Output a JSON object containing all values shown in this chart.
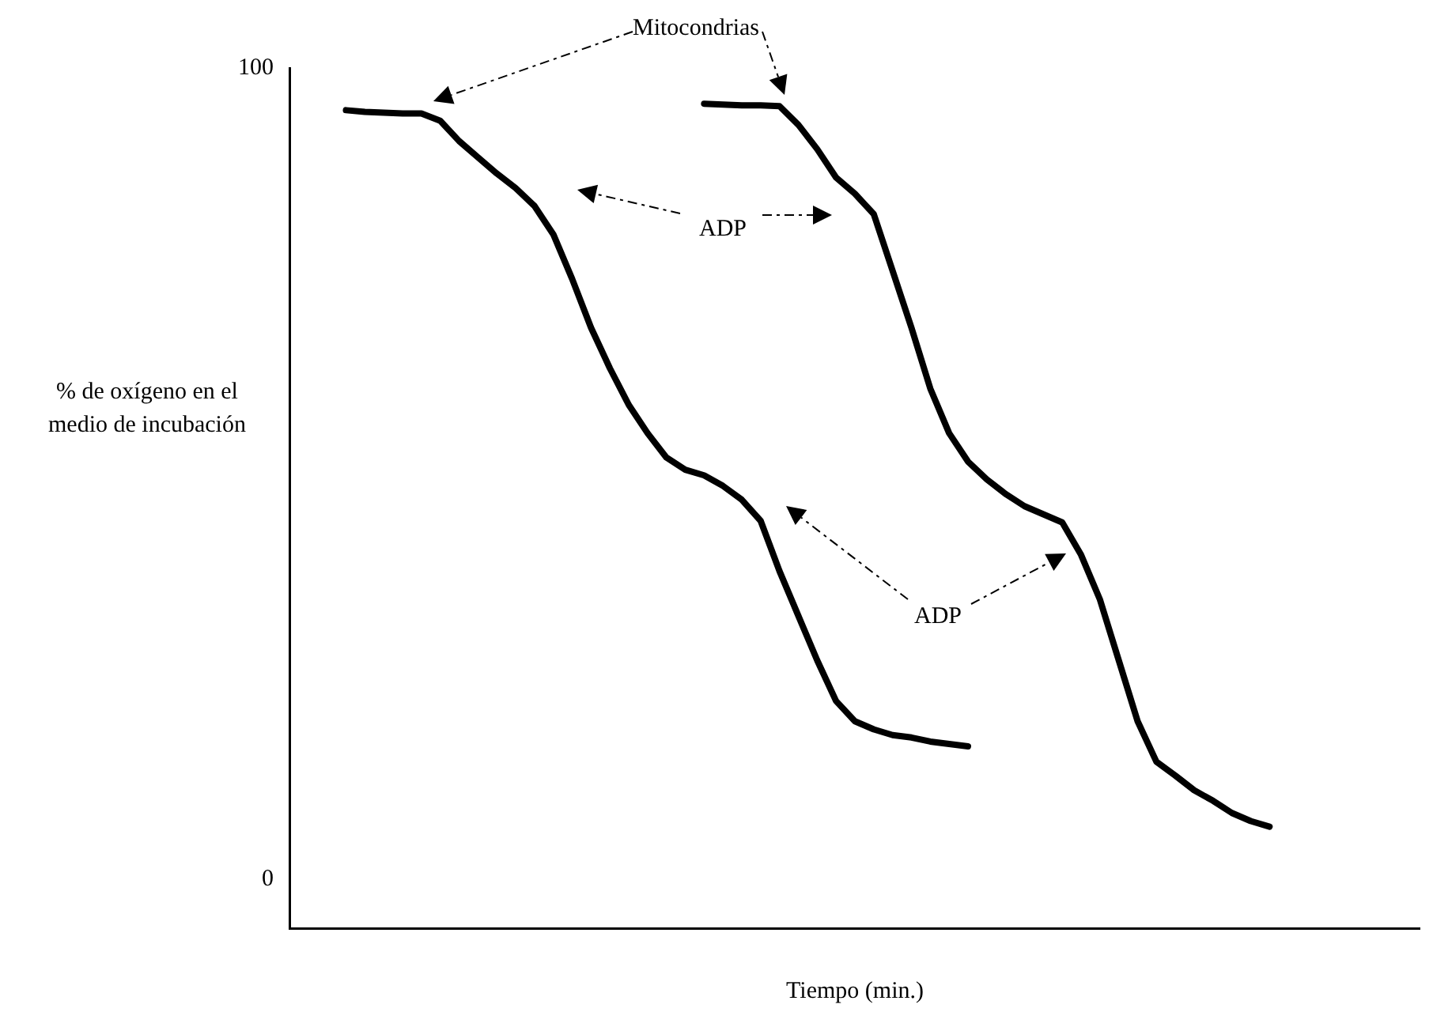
{
  "chart_data": {
    "type": "line",
    "xlabel": "Tiempo (min.)",
    "ylabel": "% de oxígeno en el medio de incubación",
    "categories": [
      null,
      null,
      null,
      null,
      null,
      null,
      null,
      null,
      null,
      null,
      null,
      null,
      null,
      null,
      null,
      null,
      null,
      null,
      null,
      null,
      null,
      null,
      null,
      null,
      null,
      null,
      null,
      null,
      null,
      null,
      null,
      null,
      null,
      null,
      null,
      null,
      null,
      null,
      null,
      null,
      null,
      null,
      null,
      null,
      null,
      null,
      null,
      null,
      null,
      null,
      null,
      null,
      null,
      null,
      null,
      null,
      null,
      null,
      null,
      null,
      null
    ],
    "series": [
      {
        "color": "#000000",
        "values": [
          null,
          null,
          null,
          94.8,
          94.6,
          94.5,
          94.4,
          94.4,
          93.5,
          91,
          89,
          87,
          85.2,
          83,
          79.5,
          74,
          68,
          63,
          58.5,
          55,
          52,
          50.5,
          49.8,
          48.5,
          46.8,
          44.2,
          38,
          32.5,
          27,
          22,
          19.5,
          18.5,
          17.8,
          17.5,
          17,
          16.7,
          16.4,
          null,
          null,
          null,
          null,
          null,
          null,
          null,
          null,
          null,
          null,
          null,
          null,
          null,
          null,
          null,
          null,
          null,
          null,
          null,
          null,
          null,
          null,
          null,
          null
        ]
      },
      {
        "color": "#000000",
        "values": [
          null,
          null,
          null,
          null,
          null,
          null,
          null,
          null,
          null,
          null,
          null,
          null,
          null,
          null,
          null,
          null,
          null,
          null,
          null,
          null,
          null,
          null,
          95.6,
          95.5,
          95.4,
          95.4,
          95.3,
          93,
          90,
          86.5,
          84.5,
          82,
          75,
          68,
          60.5,
          55,
          51.5,
          49.3,
          47.5,
          46,
          45,
          44,
          40,
          34.5,
          27,
          19.5,
          14.5,
          12.8,
          11,
          9.7,
          8.2,
          7.2,
          6.5,
          null,
          null,
          null,
          null,
          null,
          null,
          null,
          null
        ]
      }
    ],
    "ylim": [
      -6,
      100
    ],
    "yticks": [
      0,
      100
    ],
    "tick_labels": "y",
    "grid": false,
    "marker": "none",
    "line_style": "solid",
    "annotations": [
      "Mitocondrias",
      "ADP",
      "ADP"
    ]
  }
}
